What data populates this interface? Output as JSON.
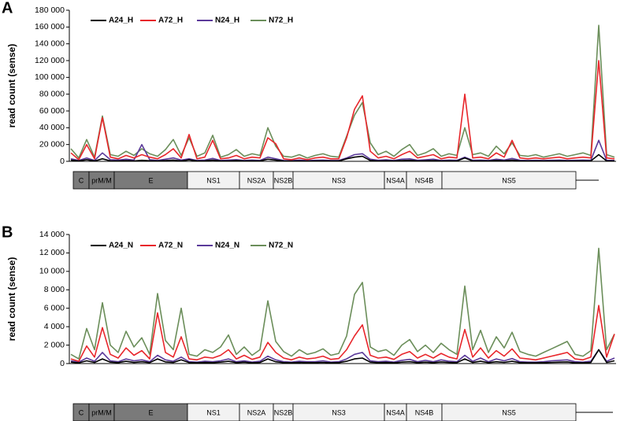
{
  "chart_data": [
    {
      "type": "line",
      "panel_label": "A",
      "y_label": "read count (sense)",
      "ylim": [
        0,
        180000
      ],
      "yticks": [
        0,
        {
          "value": 20000,
          "label": "20 000"
        },
        {
          "value": 40000,
          "label": "40 000"
        },
        {
          "value": 60000,
          "label": "60 000"
        },
        {
          "value": 80000,
          "label": "80 000"
        },
        {
          "value": 100000,
          "label": "100 000"
        },
        {
          "value": 120000,
          "label": "120 000"
        },
        {
          "value": 140000,
          "label": "140 000"
        },
        {
          "value": 160000,
          "label": "160 000"
        },
        {
          "value": 180000,
          "label": "180 000"
        }
      ],
      "series": [
        {
          "name": "A24_H",
          "color": "#000000",
          "values": [
            1500,
            500,
            2000,
            400,
            3000,
            600,
            500,
            900,
            500,
            1200,
            700,
            400,
            900,
            1500,
            500,
            1800,
            400,
            600,
            1500,
            400,
            500,
            800,
            400,
            600,
            500,
            2500,
            1500,
            400,
            300,
            500,
            300,
            500,
            600,
            400,
            400,
            3000,
            5000,
            6000,
            1000,
            500,
            700,
            400,
            900,
            1200,
            500,
            700,
            900,
            400,
            600,
            500,
            4000,
            500,
            600,
            400,
            1000,
            600,
            1500,
            500,
            400,
            500,
            400,
            500,
            600,
            400,
            500,
            600,
            500,
            8000,
            500,
            400
          ]
        },
        {
          "name": "A72_H",
          "color": "#e8262b",
          "values": [
            10000,
            2000,
            20000,
            3000,
            52000,
            5000,
            3000,
            7000,
            4000,
            8000,
            5000,
            3000,
            8000,
            15000,
            4000,
            32000,
            3000,
            5000,
            25000,
            3000,
            4000,
            7000,
            3000,
            5000,
            4000,
            28000,
            21000,
            3000,
            2000,
            4000,
            2000,
            4000,
            5000,
            3000,
            3000,
            28000,
            62000,
            78000,
            12000,
            4000,
            6000,
            3000,
            8000,
            12000,
            4000,
            6000,
            8000,
            3000,
            5000,
            4000,
            80000,
            4000,
            5000,
            3000,
            10000,
            5000,
            25000,
            4000,
            3000,
            4000,
            3000,
            4000,
            5000,
            3000,
            4000,
            5000,
            4000,
            120000,
            4000,
            3000
          ]
        },
        {
          "name": "N24_H",
          "color": "#5b3a9a",
          "values": [
            3000,
            1000,
            4000,
            1000,
            10000,
            2000,
            1500,
            2500,
            1500,
            20000,
            2000,
            1000,
            2500,
            4000,
            1500,
            3000,
            1000,
            1500,
            3500,
            1000,
            1500,
            2000,
            1000,
            1500,
            1000,
            5000,
            3000,
            1000,
            800,
            1500,
            800,
            1200,
            1500,
            1000,
            1000,
            4000,
            8000,
            9000,
            2500,
            1200,
            1800,
            1000,
            2500,
            3000,
            1200,
            1800,
            2500,
            1000,
            1500,
            1200,
            5000,
            1200,
            1500,
            1000,
            2500,
            1500,
            3500,
            1200,
            1000,
            1200,
            1000,
            1200,
            1500,
            1000,
            1200,
            1500,
            1200,
            25000,
            1200,
            1000
          ]
        },
        {
          "name": "N72_H",
          "color": "#6b8e5a",
          "values": [
            15000,
            4000,
            26000,
            5000,
            54000,
            8000,
            6000,
            12000,
            7000,
            15000,
            9000,
            6000,
            14000,
            26000,
            7000,
            28000,
            6000,
            10000,
            31000,
            5000,
            8000,
            14000,
            6000,
            9000,
            7000,
            40000,
            18000,
            6000,
            5000,
            8000,
            4000,
            7000,
            9000,
            6000,
            5000,
            30000,
            55000,
            70000,
            22000,
            8000,
            12000,
            6000,
            14000,
            20000,
            7000,
            10000,
            15000,
            6000,
            9000,
            7000,
            40000,
            8000,
            10000,
            6000,
            18000,
            9000,
            22000,
            7000,
            6000,
            8000,
            5000,
            7000,
            9000,
            6000,
            8000,
            10000,
            7000,
            162000,
            8000,
            5000
          ]
        }
      ],
      "genome_map": [
        "C",
        "prM/M",
        "E",
        "NS1",
        "NS2A",
        "NS2B",
        "NS3",
        "NS4A",
        "NS4B",
        "NS5"
      ]
    },
    {
      "type": "line",
      "panel_label": "B",
      "y_label": "read count (sense)",
      "ylim": [
        0,
        14000
      ],
      "yticks": [
        0,
        {
          "value": 2000,
          "label": "2 000"
        },
        {
          "value": 4000,
          "label": "4 000"
        },
        {
          "value": 6000,
          "label": "6 000"
        },
        {
          "value": 8000,
          "label": "8 000"
        },
        {
          "value": 10000,
          "label": "10 000"
        },
        {
          "value": 12000,
          "label": "12 000"
        },
        {
          "value": 14000,
          "label": "14 000"
        }
      ],
      "series": [
        {
          "name": "A24_N",
          "color": "#000000",
          "values": [
            150,
            80,
            300,
            120,
            500,
            150,
            100,
            250,
            120,
            200,
            100,
            500,
            180,
            120,
            400,
            100,
            80,
            120,
            100,
            150,
            250,
            100,
            150,
            80,
            120,
            500,
            200,
            100,
            80,
            120,
            100,
            100,
            130,
            80,
            100,
            250,
            500,
            600,
            150,
            100,
            120,
            80,
            150,
            200,
            100,
            150,
            100,
            180,
            120,
            100,
            500,
            120,
            250,
            100,
            200,
            130,
            250,
            100,
            80,
            80,
            100,
            130,
            150,
            180,
            80,
            80,
            120,
            1500,
            120,
            300
          ]
        },
        {
          "name": "A72_N",
          "color": "#e8262b",
          "values": [
            500,
            250,
            1900,
            700,
            3900,
            1000,
            600,
            1700,
            900,
            1400,
            500,
            5500,
            1200,
            700,
            2900,
            500,
            400,
            700,
            600,
            900,
            1500,
            500,
            900,
            450,
            700,
            2300,
            1200,
            600,
            400,
            700,
            500,
            600,
            800,
            450,
            550,
            1500,
            3000,
            4200,
            900,
            600,
            700,
            450,
            1000,
            1300,
            600,
            1000,
            600,
            1100,
            700,
            500,
            3700,
            700,
            1700,
            600,
            1400,
            800,
            1600,
            600,
            500,
            400,
            600,
            800,
            1000,
            1200,
            500,
            400,
            700,
            6300,
            700,
            3200
          ]
        },
        {
          "name": "N24_N",
          "color": "#5b3a9a",
          "values": [
            300,
            150,
            600,
            250,
            1200,
            300,
            200,
            500,
            300,
            400,
            200,
            900,
            400,
            250,
            700,
            200,
            150,
            250,
            200,
            300,
            500,
            200,
            300,
            150,
            250,
            800,
            400,
            200,
            150,
            250,
            200,
            200,
            300,
            150,
            200,
            500,
            1000,
            1200,
            300,
            200,
            250,
            150,
            350,
            450,
            200,
            350,
            200,
            400,
            250,
            200,
            900,
            250,
            600,
            200,
            500,
            300,
            550,
            200,
            150,
            150,
            200,
            300,
            350,
            400,
            200,
            150,
            250,
            1500,
            250,
            600
          ]
        },
        {
          "name": "N72_N",
          "color": "#6b8e5a",
          "values": [
            1000,
            500,
            3800,
            1500,
            6600,
            2000,
            1200,
            3500,
            1800,
            2800,
            1000,
            7600,
            2500,
            1500,
            6000,
            1000,
            800,
            1500,
            1200,
            1800,
            3100,
            1000,
            1800,
            900,
            1500,
            6800,
            2400,
            1300,
            800,
            1500,
            1000,
            1200,
            1600,
            900,
            1100,
            3000,
            7500,
            8800,
            1800,
            1300,
            1500,
            900,
            2000,
            2600,
            1300,
            2000,
            1200,
            2200,
            1500,
            1000,
            8400,
            1500,
            3600,
            1200,
            2900,
            1700,
            3400,
            1300,
            1000,
            800,
            1200,
            1600,
            2000,
            2400,
            1000,
            800,
            1400,
            12500,
            1500,
            3200
          ]
        }
      ],
      "genome_map": [
        "C",
        "prM/M",
        "E",
        "NS1",
        "NS2A",
        "NS2B",
        "NS3",
        "NS4A",
        "NS4B",
        "NS5"
      ]
    }
  ]
}
